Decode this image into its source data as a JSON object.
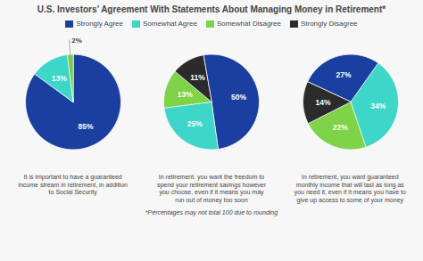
{
  "chart_data": [
    {
      "type": "pie",
      "title": "U.S. Investors’ Agreement With Statements About Managing Money in Retirement*",
      "subtitle": "It is important to have a guaranteed\nincome stream in retirement, in addition\nto Social Security",
      "categories": [
        "Strongly Agree",
        "Somewhat Agree",
        "Somewhat Disagree"
      ],
      "values": [
        85,
        13,
        2
      ],
      "value_labels": [
        "85%",
        "13%",
        "2%"
      ],
      "colors": [
        "#1a3fa0",
        "#3dd6c8",
        "#7ed348"
      ],
      "data_labels": true,
      "legend": "top",
      "annotations": [
        "*Percentages may not total 100 due to rounding"
      ]
    },
    {
      "type": "pie",
      "subtitle": "In retirement, you want the freedom to\nspend your retirement savings however\nyou choose, even if it means you may\nrun out of money too soon",
      "categories": [
        "Strongly Agree",
        "Somewhat Agree",
        "Somewhat Disagree",
        "Strongly Disagree"
      ],
      "values": [
        50,
        25,
        13,
        11
      ],
      "value_labels": [
        "50%",
        "25%",
        "13%",
        "11%"
      ],
      "colors": [
        "#1a3fa0",
        "#3dd6c8",
        "#7ed348",
        "#2b2b2b"
      ],
      "data_labels": true,
      "legend": "top"
    },
    {
      "type": "pie",
      "subtitle": "In retirement, you want guaranteed\nmonthly income that will last as long as\nyou need it, even if it means you have to\ngive up access to some of your money",
      "categories": [
        "Strongly Agree",
        "Somewhat Agree",
        "Somewhat Disagree",
        "Strongly Disagree"
      ],
      "values": [
        27,
        34,
        22,
        14
      ],
      "value_labels": [
        "27%",
        "34%",
        "22%",
        "14%"
      ],
      "colors": [
        "#1a3fa0",
        "#3dd6c8",
        "#7ed348",
        "#2b2b2b"
      ],
      "data_labels": true,
      "legend": "top"
    }
  ]
}
